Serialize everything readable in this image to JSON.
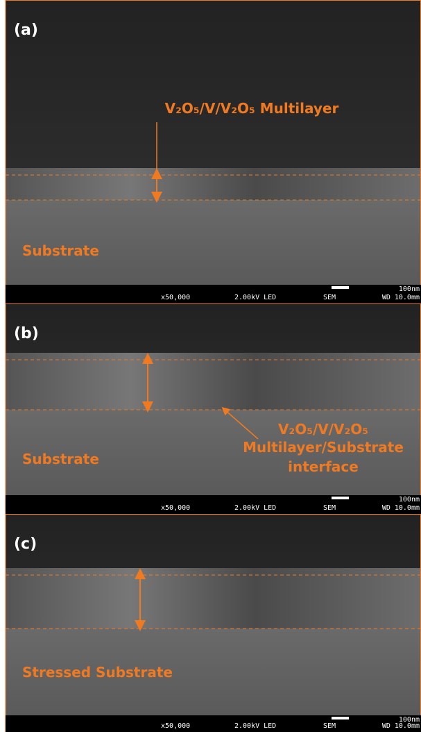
{
  "panels": [
    {
      "label": "(a)",
      "annotations": [
        "V₂O₅/V/V₂O₅ Multilayer",
        "Substrate"
      ],
      "info": {
        "magnification": "x50,000",
        "voltage": "2.00kV LED",
        "detector": "SEM",
        "scale": "100nm",
        "wd": "WD 10.0mm"
      }
    },
    {
      "label": "(b)",
      "annotations": [
        "V₂O₅/V/V₂O₅",
        "Multilayer/Substrate",
        "interface",
        "Substrate"
      ],
      "info": {
        "magnification": "x50,000",
        "voltage": "2.00kV LED",
        "detector": "SEM",
        "scale": "100nm",
        "wd": "WD 10.0mm"
      }
    },
    {
      "label": "(c)",
      "annotations": [
        "Stressed Substrate"
      ],
      "info": {
        "magnification": "x50,000",
        "voltage": "2.00kV LED",
        "detector": "SEM",
        "scale": "100nm",
        "wd": "WD 10.0mm"
      }
    }
  ]
}
